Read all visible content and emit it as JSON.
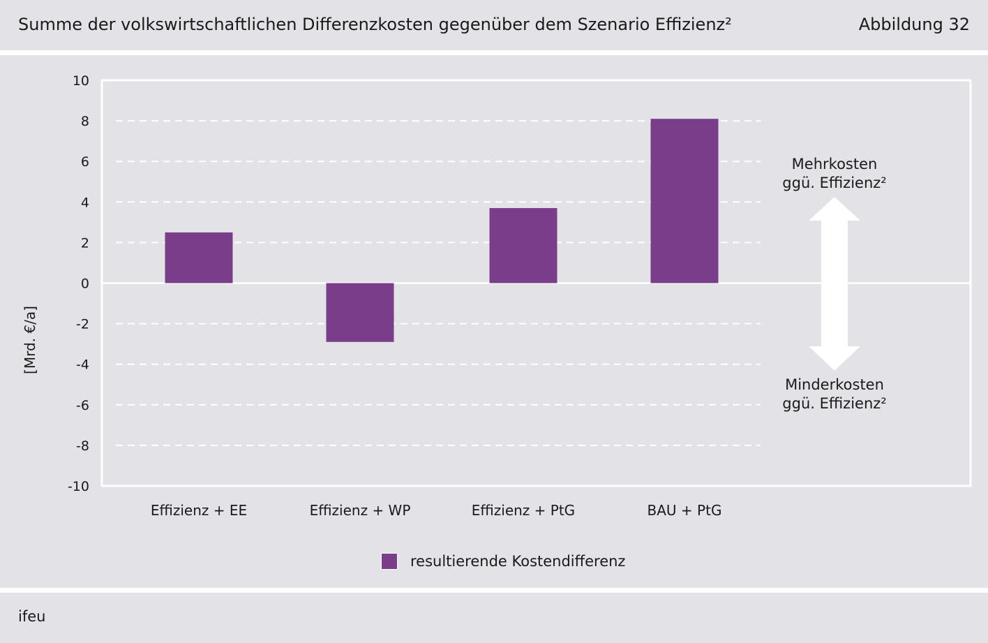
{
  "header": {
    "title": "Summe der volkswirtschaftlichen Differenzkosten gegenüber dem Szenario Effizienz²",
    "figure_number": "Abbildung 32"
  },
  "footer": {
    "source": "ifeu"
  },
  "annotations": {
    "upper_line1": "Mehrkosten",
    "upper_line2": "ggü. Effizienz²",
    "lower_line1": "Minderkosten",
    "lower_line2": "ggü. Effizienz²"
  },
  "legend": {
    "label": "resultierende Kostendifferenz"
  },
  "colors": {
    "bar": "#7a3d8a",
    "panel": "#e2e2e7",
    "grid": "#ffffff"
  },
  "chart_data": {
    "type": "bar",
    "title": "Summe der volkswirtschaftlichen Differenzkosten gegenüber dem Szenario Effizienz²",
    "xlabel": "",
    "ylabel": "[Mrd. €/a]",
    "ylim": [
      -10,
      10
    ],
    "yticks": [
      10,
      8,
      6,
      4,
      2,
      0,
      -2,
      -4,
      -6,
      -8,
      -10
    ],
    "categories": [
      "Effizienz + EE",
      "Effizienz + WP",
      "Effizienz + PtG",
      "BAU + PtG"
    ],
    "series": [
      {
        "name": "resultierende Kostendifferenz",
        "values": [
          2.5,
          -2.9,
          3.7,
          8.1
        ]
      }
    ],
    "grid": true,
    "legend_position": "bottom-center"
  }
}
